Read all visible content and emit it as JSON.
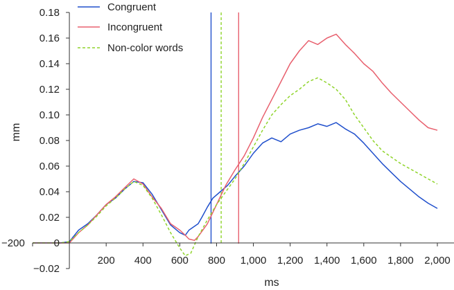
{
  "chart_data": {
    "type": "line",
    "xlabel": "ms",
    "ylabel": "mm",
    "xlim": [
      -200,
      2000
    ],
    "ylim": [
      -0.02,
      0.18
    ],
    "x_ticks": [
      -200,
      200,
      400,
      600,
      800,
      1000,
      1200,
      1400,
      1600,
      1800,
      2000
    ],
    "x_tick_labels": [
      "−200",
      "200",
      "400",
      "600",
      "800",
      "1,000",
      "1,200",
      "1,400",
      "1,600",
      "1,800",
      "2,000"
    ],
    "y_ticks": [
      -0.02,
      0.0,
      0.02,
      0.04,
      0.06,
      0.08,
      0.1,
      0.12,
      0.14,
      0.16,
      0.18
    ],
    "y_tick_labels": [
      "−0.02",
      "0",
      "0.02",
      "0.04",
      "0.06",
      "0.08",
      "0.10",
      "0.12",
      "0.14",
      "0.16",
      "0.18"
    ],
    "legend_position": "top-left",
    "grid": false,
    "series": [
      {
        "name": "Congruent",
        "color": "#1f4fcc",
        "dash": "solid",
        "x": [
          -200,
          -150,
          -100,
          -50,
          0,
          50,
          100,
          150,
          200,
          250,
          300,
          350,
          400,
          450,
          500,
          550,
          600,
          630,
          650,
          700,
          720,
          750,
          780,
          820,
          860,
          900,
          950,
          1000,
          1050,
          1100,
          1150,
          1200,
          1250,
          1300,
          1350,
          1400,
          1450,
          1500,
          1550,
          1600,
          1650,
          1700,
          1750,
          1800,
          1850,
          1900,
          1950,
          2000
        ],
        "y": [
          0.0,
          0.0,
          0.0,
          0.0,
          0.001,
          0.01,
          0.015,
          0.022,
          0.03,
          0.035,
          0.042,
          0.048,
          0.047,
          0.038,
          0.026,
          0.014,
          0.008,
          0.006,
          0.01,
          0.015,
          0.02,
          0.028,
          0.035,
          0.04,
          0.045,
          0.052,
          0.06,
          0.07,
          0.078,
          0.082,
          0.079,
          0.085,
          0.088,
          0.09,
          0.093,
          0.091,
          0.094,
          0.089,
          0.085,
          0.078,
          0.07,
          0.062,
          0.055,
          0.048,
          0.042,
          0.036,
          0.031,
          0.027
        ]
      },
      {
        "name": "Incongruent",
        "color": "#e8606e",
        "dash": "solid",
        "x": [
          -200,
          -150,
          -100,
          -50,
          0,
          50,
          100,
          150,
          200,
          250,
          300,
          350,
          400,
          450,
          500,
          550,
          600,
          630,
          650,
          680,
          700,
          750,
          800,
          850,
          900,
          950,
          1000,
          1050,
          1100,
          1150,
          1200,
          1250,
          1300,
          1350,
          1400,
          1450,
          1500,
          1550,
          1600,
          1650,
          1700,
          1750,
          1800,
          1850,
          1900,
          1950,
          2000
        ],
        "y": [
          0.0,
          0.0,
          0.0,
          0.0,
          0.0,
          0.008,
          0.014,
          0.022,
          0.03,
          0.036,
          0.043,
          0.05,
          0.046,
          0.036,
          0.027,
          0.015,
          0.01,
          0.006,
          0.003,
          0.002,
          0.005,
          0.015,
          0.03,
          0.045,
          0.057,
          0.068,
          0.082,
          0.098,
          0.112,
          0.126,
          0.14,
          0.15,
          0.158,
          0.155,
          0.16,
          0.163,
          0.155,
          0.148,
          0.14,
          0.134,
          0.125,
          0.117,
          0.11,
          0.103,
          0.096,
          0.09,
          0.088
        ]
      },
      {
        "name": "Non-color words",
        "color": "#8fd42a",
        "dash": "dashed",
        "x": [
          -200,
          -150,
          -100,
          -50,
          0,
          50,
          100,
          150,
          200,
          250,
          300,
          350,
          400,
          450,
          500,
          550,
          600,
          630,
          660,
          700,
          750,
          800,
          850,
          900,
          950,
          1000,
          1050,
          1100,
          1150,
          1200,
          1250,
          1300,
          1350,
          1400,
          1450,
          1500,
          1550,
          1600,
          1650,
          1700,
          1750,
          1800,
          1850,
          1900,
          1950,
          2000
        ],
        "y": [
          0.0,
          0.0,
          0.0,
          0.0,
          0.001,
          0.008,
          0.014,
          0.021,
          0.029,
          0.035,
          0.042,
          0.048,
          0.045,
          0.035,
          0.022,
          0.008,
          -0.004,
          -0.01,
          -0.008,
          0.005,
          0.018,
          0.03,
          0.04,
          0.05,
          0.062,
          0.075,
          0.088,
          0.1,
          0.108,
          0.115,
          0.12,
          0.126,
          0.129,
          0.125,
          0.12,
          0.112,
          0.1,
          0.09,
          0.08,
          0.072,
          0.067,
          0.062,
          0.058,
          0.054,
          0.05,
          0.046
        ]
      }
    ],
    "vertical_markers": [
      {
        "x": 770,
        "color": "#1f4fcc",
        "dash": "solid"
      },
      {
        "x": 825,
        "color": "#8fd42a",
        "dash": "dashed"
      },
      {
        "x": 920,
        "color": "#e8606e",
        "dash": "solid"
      }
    ]
  }
}
